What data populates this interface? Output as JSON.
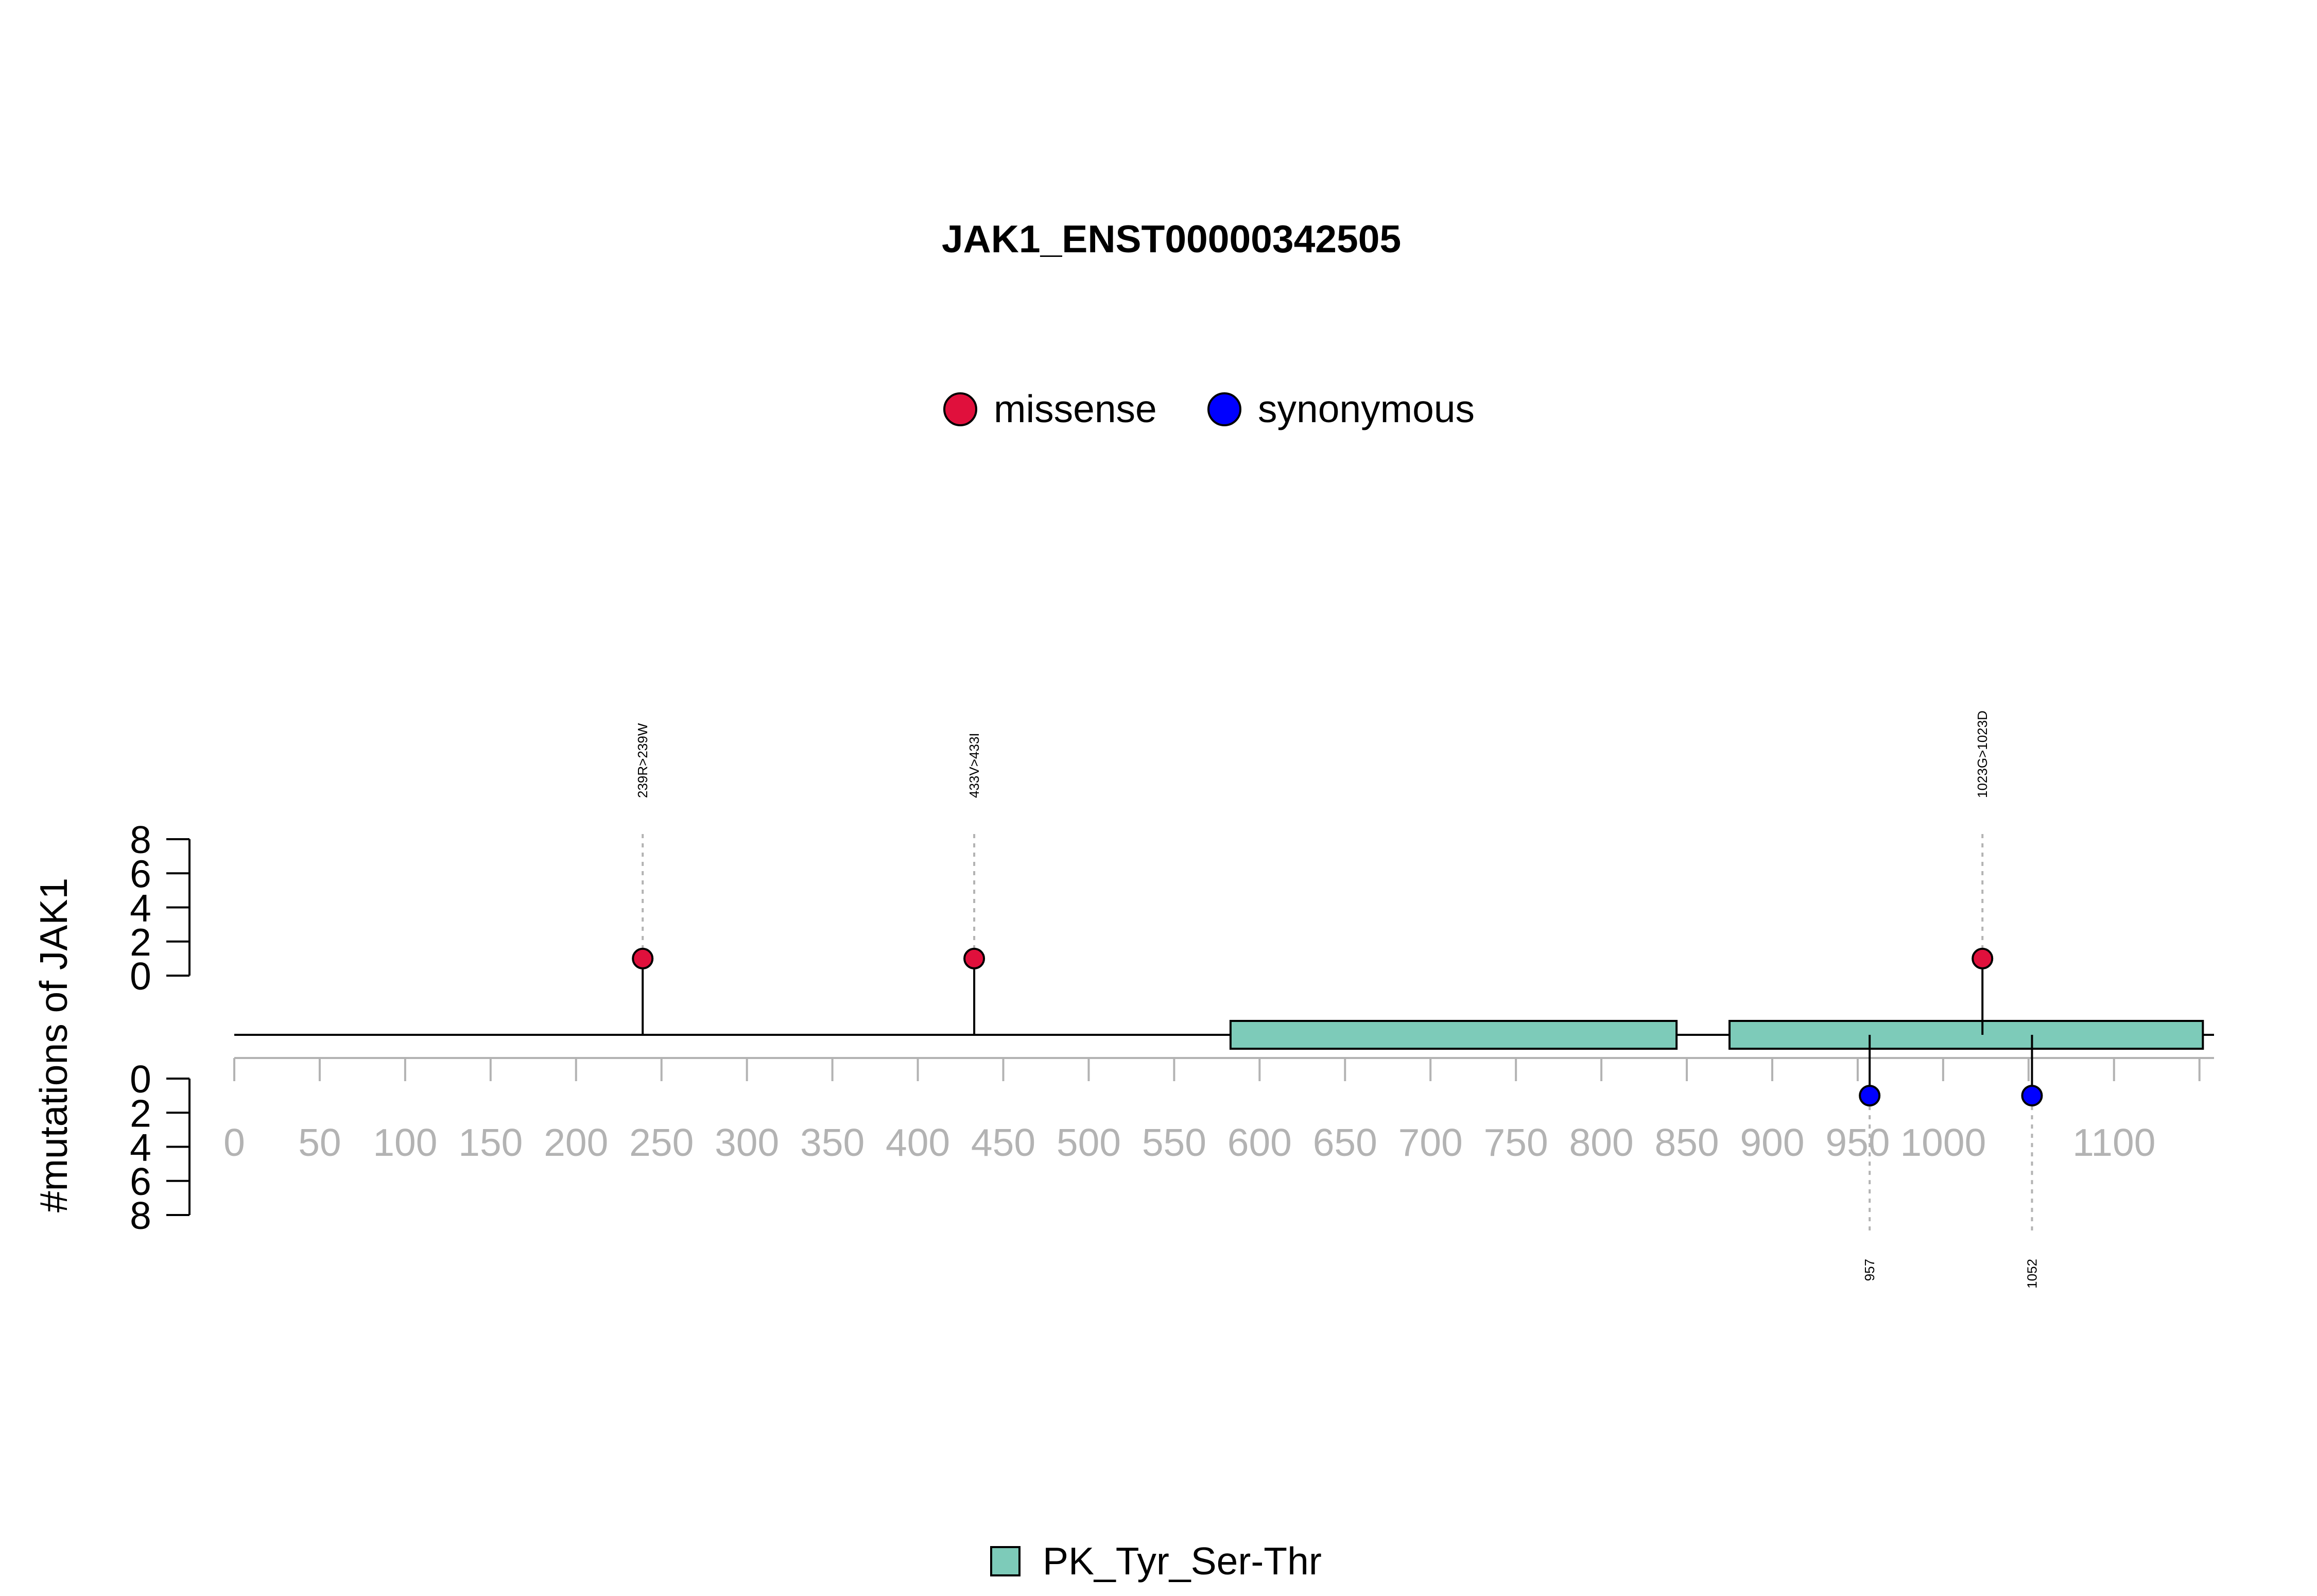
{
  "chart_data": {
    "type": "lollipop",
    "title": "JAK1_ENST00000342505",
    "ylabel": "#mutations of JAK1",
    "protein_length": 1154,
    "x_ticks": [
      0,
      50,
      100,
      150,
      200,
      250,
      300,
      350,
      400,
      450,
      500,
      550,
      600,
      650,
      700,
      750,
      800,
      850,
      900,
      950,
      1000,
      1100
    ],
    "y_ticks": [
      0,
      2,
      4,
      6,
      8
    ],
    "ylim": [
      0,
      8
    ],
    "legend_top": [
      {
        "name": "missense",
        "color": "#e0103c"
      },
      {
        "name": "synonymous",
        "color": "#0000ff"
      }
    ],
    "mutations": [
      {
        "position": 239,
        "count": 1,
        "type": "missense",
        "label": "239R>239W"
      },
      {
        "position": 433,
        "count": 1,
        "type": "missense",
        "label": "433V>433I"
      },
      {
        "position": 1023,
        "count": 1,
        "type": "missense",
        "label": "1023G>1023D"
      },
      {
        "position": 957,
        "count": 1,
        "type": "synonymous",
        "label": "957"
      },
      {
        "position": 1052,
        "count": 1,
        "type": "synonymous",
        "label": "1052"
      }
    ],
    "domains": [
      {
        "name": "PK_Tyr_Ser-Thr",
        "start": 583,
        "end": 844,
        "color": "#7dcbb9"
      },
      {
        "name": "PK_Tyr_Ser-Thr",
        "start": 875,
        "end": 1152,
        "color": "#7dcbb9"
      }
    ],
    "legend_bottom": [
      {
        "name": "PK_Tyr_Ser-Thr",
        "color": "#7dcbb9"
      }
    ]
  }
}
